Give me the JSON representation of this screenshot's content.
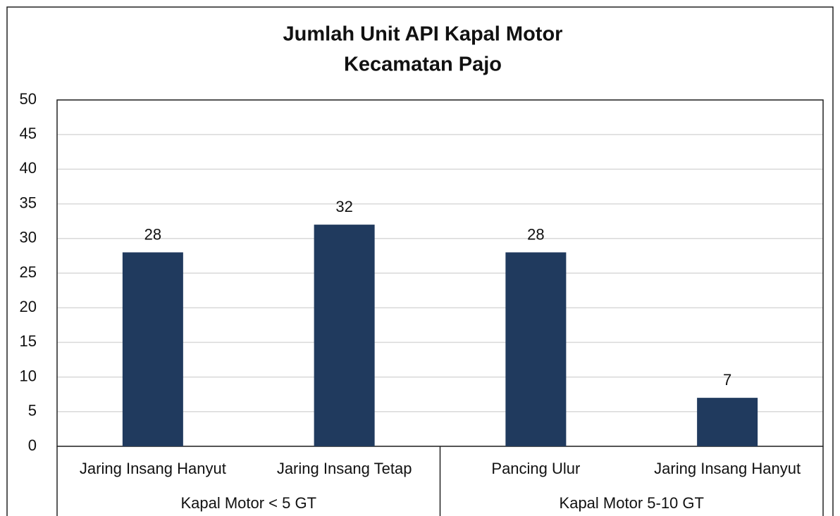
{
  "chart_data": {
    "type": "bar",
    "title": [
      "Jumlah Unit API Kapal Motor",
      "Kecamatan Pajo"
    ],
    "groups": [
      {
        "name": "Kapal Motor < 5 GT",
        "categories": [
          "Jaring Insang Hanyut",
          "Jaring Insang Tetap"
        ],
        "values": [
          28,
          32
        ]
      },
      {
        "name": "Kapal Motor 5-10 GT",
        "categories": [
          "Pancing Ulur",
          "Jaring Insang Hanyut"
        ],
        "values": [
          28,
          7
        ]
      }
    ],
    "color": "#203a5e",
    "ylim": [
      0,
      50
    ],
    "yticks": [
      0,
      5,
      10,
      15,
      20,
      25,
      30,
      35,
      40,
      45,
      50
    ],
    "grid": true
  }
}
